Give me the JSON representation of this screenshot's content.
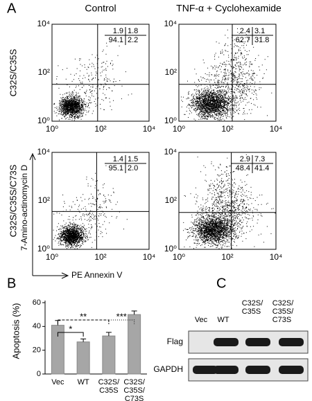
{
  "panel_labels": [
    "A",
    "B",
    "C"
  ],
  "flow": {
    "column_titles": [
      "Control",
      "TNF-α + Cyclohexamide"
    ],
    "row_labels": [
      "C32S/C35S",
      "C32S/C35S/C73S"
    ],
    "y_label": "7-Amino-actinomycin D",
    "x_label": "PE Annexin V",
    "ticks": [
      "10⁰",
      "10²",
      "10⁴"
    ],
    "plots": [
      {
        "quadrants": [
          "1.9",
          "1.8",
          "94.1",
          "2.2"
        ]
      },
      {
        "quadrants": [
          "2.4",
          "3.1",
          "62.7",
          "31.8"
        ]
      },
      {
        "quadrants": [
          "1.4",
          "1.5",
          "95.1",
          "2.0"
        ]
      },
      {
        "quadrants": [
          "2.9",
          "7.3",
          "48.4",
          "41.4"
        ]
      }
    ]
  },
  "chart_data": {
    "type": "bar",
    "y_label": "Apoptosis (%)",
    "categories": [
      "Vec",
      "WT",
      "C32S/\nC35S",
      "C32S/\nC35S/\nC73S"
    ],
    "values": [
      41,
      27,
      32,
      50
    ],
    "errors": [
      4,
      2.5,
      3,
      3
    ],
    "color": "#a6a6a6",
    "ylim": [
      0,
      60
    ],
    "yticks": [
      0,
      20,
      40,
      60
    ],
    "annotations": [
      "*",
      "**",
      "***"
    ]
  },
  "blot": {
    "lanes": [
      "Vec",
      "WT",
      "C32S/\nC35S",
      "C32S/\nC35S/\nC73S"
    ],
    "rows": [
      "Flag",
      "GAPDH"
    ]
  }
}
